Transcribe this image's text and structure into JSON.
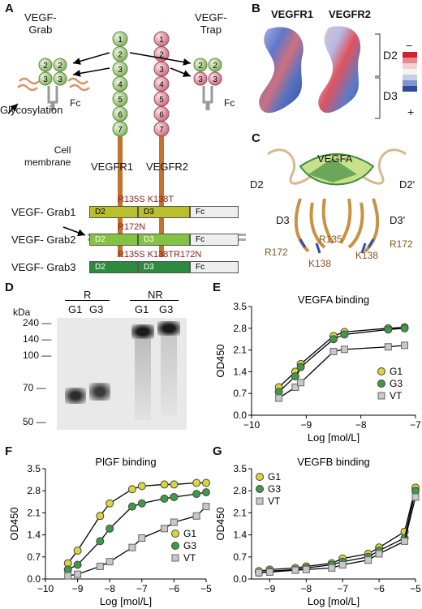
{
  "panels": {
    "A": "A",
    "B": "B",
    "C": "C",
    "D": "D",
    "E": "E",
    "F": "F",
    "G": "G"
  },
  "panelA": {
    "grab_label": "VEGF-\nGrab",
    "trap_label": "VEGF-\nTrap",
    "glyco": "Glycosylation",
    "fc": "Fc",
    "cell_membrane": "Cell\nmembrane",
    "vegfr1": "VEGFR1",
    "vegfr2": "VEGFR2",
    "domains": [
      "1",
      "2",
      "3",
      "4",
      "5",
      "6",
      "7"
    ],
    "constructs": [
      {
        "name": "VEGF- Grab1",
        "mut": "R135S K138T",
        "segs": [
          "D2",
          "D3",
          "Fc"
        ],
        "color": "#b9bf2d"
      },
      {
        "name": "VEGF- Grab2",
        "mut": "R172N",
        "segs": [
          "D2",
          "D3",
          "Fc"
        ],
        "color": "#83c341"
      },
      {
        "name": "VEGF- Grab3",
        "mut": "R135S K138TR172N",
        "segs": [
          "D2",
          "D3",
          "Fc"
        ],
        "color": "#2e8a3f"
      }
    ]
  },
  "panelB": {
    "r1": "VEGFR1",
    "r2": "VEGFR2",
    "d2": "D2",
    "d3": "D3",
    "minus": "−",
    "plus": "+"
  },
  "panelC": {
    "vegfa": "VEGFA",
    "d2": "D2",
    "d2p": "D2'",
    "d3": "D3",
    "d3p": "D3'",
    "r135": "R135",
    "r172a": "R172",
    "r172b": "R172",
    "k138a": "K138",
    "k138b": "K138"
  },
  "panelD": {
    "kda": "kDa",
    "R": "R",
    "NR": "NR",
    "lanes": [
      "G1",
      "G3",
      "G1",
      "G3"
    ],
    "markers": [
      "240",
      "140",
      "100",
      "70",
      "50"
    ]
  },
  "chart_data": [
    {
      "panel": "E",
      "type": "line",
      "title": "VEGFA binding",
      "xlabel": "Log [mol/L]",
      "ylabel": "OD450",
      "xlim": [
        -10,
        -7
      ],
      "ylim": [
        0,
        3.5
      ],
      "xticks": [
        -10,
        -9,
        -8,
        -7
      ],
      "yticks": [
        0,
        0.7,
        1.4,
        2.1,
        2.8,
        3.5
      ],
      "series": [
        {
          "name": "G1",
          "color": "#d8d63a",
          "marker": "circle",
          "x": [
            -9.5,
            -9.2,
            -9.1,
            -8.5,
            -8.3,
            -7.5,
            -7.2
          ],
          "y": [
            0.9,
            1.4,
            1.65,
            2.55,
            2.68,
            2.8,
            2.83
          ]
        },
        {
          "name": "G3",
          "color": "#3e9a48",
          "marker": "circle",
          "x": [
            -9.5,
            -9.2,
            -9.1,
            -8.5,
            -8.3,
            -7.5,
            -7.2
          ],
          "y": [
            0.75,
            1.25,
            1.55,
            2.45,
            2.6,
            2.76,
            2.8
          ]
        },
        {
          "name": "VT",
          "color": "#c8c8c8",
          "marker": "square",
          "x": [
            -9.5,
            -9.2,
            -9.1,
            -8.5,
            -8.3,
            -7.5,
            -7.2
          ],
          "y": [
            0.55,
            0.9,
            1.05,
            2.05,
            2.12,
            2.2,
            2.25
          ]
        }
      ]
    },
    {
      "panel": "F",
      "type": "line",
      "title": "PlGF binding",
      "xlabel": "Log [mol/L]",
      "ylabel": "OD450",
      "xlim": [
        -10,
        -5
      ],
      "ylim": [
        0,
        3.5
      ],
      "xticks": [
        -10,
        -9,
        -8,
        -7,
        -6,
        -5
      ],
      "yticks": [
        0,
        0.7,
        1.4,
        2.1,
        2.8,
        3.5
      ],
      "series": [
        {
          "name": "G1",
          "color": "#d8d63a",
          "marker": "circle",
          "x": [
            -9.3,
            -9,
            -8.3,
            -8,
            -7.3,
            -7,
            -6.3,
            -6,
            -5.3,
            -5
          ],
          "y": [
            0.5,
            0.9,
            2.0,
            2.4,
            2.85,
            2.95,
            3.0,
            3.0,
            3.05,
            3.05
          ]
        },
        {
          "name": "G3",
          "color": "#3e9a48",
          "marker": "circle",
          "x": [
            -9.3,
            -9,
            -8.3,
            -8,
            -7.3,
            -7,
            -6.3,
            -6,
            -5.3,
            -5
          ],
          "y": [
            0.3,
            0.45,
            1.2,
            1.6,
            2.3,
            2.4,
            2.55,
            2.6,
            2.7,
            2.75
          ]
        },
        {
          "name": "VT",
          "color": "#c8c8c8",
          "marker": "square",
          "x": [
            -9.3,
            -9,
            -8.3,
            -8,
            -7.3,
            -7,
            -6.3,
            -6,
            -5.3,
            -5
          ],
          "y": [
            0.1,
            0.15,
            0.4,
            0.55,
            1.0,
            1.3,
            1.6,
            1.8,
            2.0,
            2.3
          ]
        }
      ]
    },
    {
      "panel": "G",
      "type": "line",
      "title": "VEGFB binding",
      "xlabel": "Log [mol/L]",
      "ylabel": "OD450",
      "xlim": [
        -9.5,
        -5
      ],
      "ylim": [
        0,
        3.5
      ],
      "xticks": [
        -9,
        -8,
        -7,
        -6,
        -5
      ],
      "yticks": [
        0,
        0.7,
        1.4,
        2.1,
        2.8,
        3.5
      ],
      "series": [
        {
          "name": "G1",
          "color": "#d8d63a",
          "marker": "circle",
          "x": [
            -9.3,
            -9,
            -8.3,
            -8,
            -7.3,
            -7,
            -6.3,
            -6,
            -5.3,
            -5
          ],
          "y": [
            0.25,
            0.3,
            0.35,
            0.4,
            0.5,
            0.65,
            0.8,
            1.0,
            1.5,
            2.9
          ]
        },
        {
          "name": "G3",
          "color": "#3e9a48",
          "marker": "circle",
          "x": [
            -9.3,
            -9,
            -8.3,
            -8,
            -7.3,
            -7,
            -6.3,
            -6,
            -5.3,
            -5
          ],
          "y": [
            0.2,
            0.25,
            0.3,
            0.35,
            0.45,
            0.55,
            0.7,
            0.9,
            1.3,
            2.8
          ]
        },
        {
          "name": "VT",
          "color": "#c8c8c8",
          "marker": "square",
          "x": [
            -9.3,
            -9,
            -8.3,
            -8,
            -7.3,
            -7,
            -6.3,
            -6,
            -5.3,
            -5
          ],
          "y": [
            0.2,
            0.22,
            0.28,
            0.3,
            0.35,
            0.45,
            0.6,
            0.8,
            1.2,
            2.6
          ]
        }
      ]
    }
  ]
}
